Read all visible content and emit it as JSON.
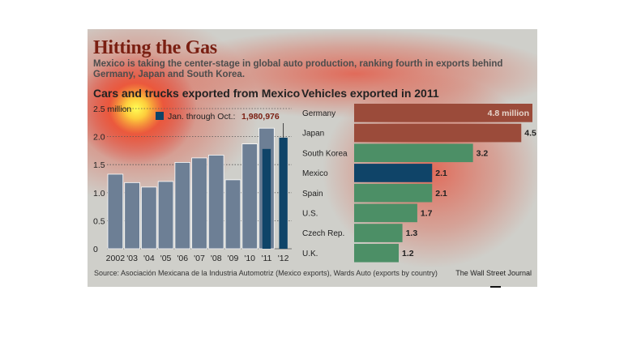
{
  "title": "Hitting the Gas",
  "subtitle": "Mexico is taking the center-stage in global auto production, ranking fourth in exports behind Germany, Japan and South Korea.",
  "source": "Source:  Asociación Mexicana de la Industria Automotriz (Mexico exports), Wards Auto (exports by country)",
  "credit": "The Wall Street Journal",
  "colors": {
    "background": "#cfcfca",
    "title": "#7a1f12",
    "annual_bar": "#6d7f95",
    "partial_bar": "#0f4468",
    "country_bar": "#4c8f66",
    "mexico_bar": "#0f4468",
    "highlight_bar": "#9b4b3a"
  },
  "chart_data": [
    {
      "type": "bar",
      "title": "Cars and trucks exported from Mexico",
      "categories": [
        "2002",
        "'03",
        "'04",
        "'05",
        "'06",
        "'07",
        "'08",
        "'09",
        "'10",
        "'11",
        "'12"
      ],
      "series": [
        {
          "values": [
            1.33,
            1.18,
            1.1,
            1.2,
            1.54,
            1.62,
            1.67,
            1.23,
            1.87,
            2.15,
            null
          ]
        },
        {
          "name": "Jan. through Oct.:",
          "values": [
            null,
            null,
            null,
            null,
            null,
            null,
            null,
            null,
            null,
            1.78,
            1.981
          ]
        }
      ],
      "legend_label": "Jan. through Oct.:",
      "legend_value": "1,980,976",
      "ylim": [
        0,
        2.5
      ],
      "yticks": [
        "0",
        "0.5",
        "1.0",
        "1.5",
        "2.0",
        "2.5 million"
      ],
      "grid": true,
      "legend": "top"
    },
    {
      "type": "bar",
      "orientation": "horizontal",
      "title": "Vehicles exported in 2011",
      "categories": [
        "Germany",
        "Japan",
        "South Korea",
        "Mexico",
        "Spain",
        "U.S.",
        "Czech Rep.",
        "U.K."
      ],
      "values": [
        4.8,
        4.5,
        3.2,
        2.1,
        2.1,
        1.7,
        1.3,
        1.2
      ],
      "labels": [
        "4.8 million",
        "4.5",
        "3.2",
        "2.1",
        "2.1",
        "1.7",
        "1.3",
        "1.2"
      ],
      "xlim": [
        0,
        4.8
      ]
    }
  ]
}
